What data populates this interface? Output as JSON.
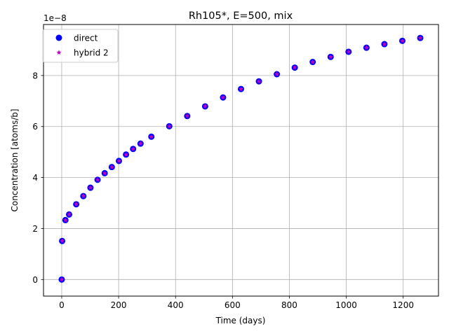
{
  "chart_data": {
    "type": "scatter",
    "title": "Rh105*, E=500, mix",
    "xlabel": "Time (days)",
    "ylabel": "Concentration [atoms/b]",
    "y_offset_label": "1e−8",
    "xlim": [
      -64,
      1324
    ],
    "ylim": [
      -0.65,
      10.0
    ],
    "y_scale_note": "values in units of 1e-8",
    "x_ticks": [
      0,
      200,
      400,
      600,
      800,
      1000,
      1200
    ],
    "x_tick_labels": [
      "0",
      "200",
      "400",
      "600",
      "800",
      "1000",
      "1200"
    ],
    "y_ticks": [
      0,
      2,
      4,
      6,
      8
    ],
    "y_tick_labels": [
      "0",
      "2",
      "4",
      "6",
      "8"
    ],
    "grid": true,
    "legend_position": "top-left",
    "series": [
      {
        "name": "direct",
        "marker": "circle",
        "color": "#0000ff",
        "x": [
          0,
          1.5,
          13,
          26,
          51,
          76,
          101,
          126,
          151,
          176,
          201,
          226,
          251,
          277,
          315,
          378,
          441,
          504,
          567,
          630,
          693,
          756,
          819,
          882,
          945,
          1008,
          1071,
          1134,
          1197,
          1260
        ],
        "y": [
          0.0,
          1.51,
          2.33,
          2.55,
          2.95,
          3.27,
          3.6,
          3.91,
          4.17,
          4.41,
          4.65,
          4.9,
          5.12,
          5.33,
          5.6,
          6.01,
          6.41,
          6.79,
          7.14,
          7.47,
          7.77,
          8.05,
          8.31,
          8.53,
          8.73,
          8.93,
          9.09,
          9.23,
          9.36,
          9.47
        ]
      },
      {
        "name": "hybrid 2",
        "marker": "star",
        "color": "#bf00bf",
        "x": [
          0,
          1.5,
          13,
          26,
          51,
          76,
          101,
          126,
          151,
          176,
          201,
          226,
          251,
          277,
          315,
          378,
          441,
          504,
          567,
          630,
          693,
          756,
          819,
          882,
          945,
          1008,
          1071,
          1134,
          1197,
          1260
        ],
        "y": [
          0.0,
          1.51,
          2.33,
          2.55,
          2.95,
          3.27,
          3.6,
          3.91,
          4.17,
          4.41,
          4.65,
          4.9,
          5.12,
          5.33,
          5.6,
          6.01,
          6.41,
          6.79,
          7.14,
          7.47,
          7.77,
          8.05,
          8.31,
          8.53,
          8.73,
          8.93,
          9.09,
          9.23,
          9.36,
          9.47
        ]
      }
    ]
  }
}
